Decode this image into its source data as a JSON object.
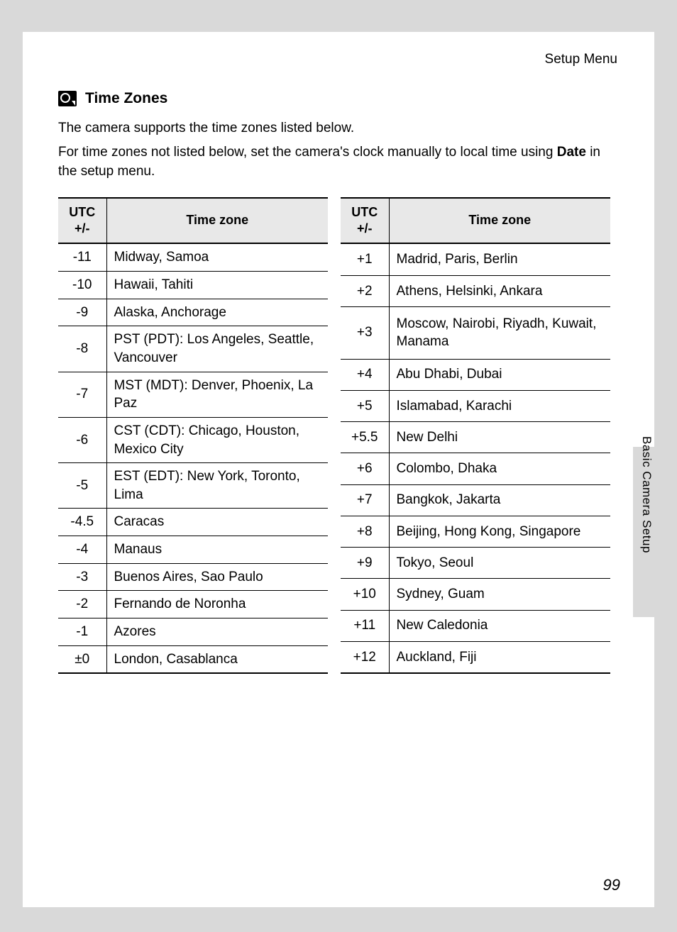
{
  "breadcrumb": "Setup Menu",
  "heading": "Time Zones",
  "intro": {
    "line1": "The camera supports the time zones listed below.",
    "line2a": "For time zones not listed below, set the camera's clock manually to local time using ",
    "line2_bold": "Date",
    "line2b": " in the setup menu."
  },
  "table_headers": {
    "utc": "UTC +/-",
    "zone": "Time zone"
  },
  "left_rows": [
    {
      "utc": "-11",
      "zone": "Midway, Samoa"
    },
    {
      "utc": "-10",
      "zone": "Hawaii, Tahiti"
    },
    {
      "utc": "-9",
      "zone": "Alaska, Anchorage"
    },
    {
      "utc": "-8",
      "zone": "PST (PDT): Los Angeles, Seattle, Vancouver"
    },
    {
      "utc": "-7",
      "zone": "MST (MDT): Denver, Phoenix, La Paz"
    },
    {
      "utc": "-6",
      "zone": "CST (CDT): Chicago, Houston, Mexico City"
    },
    {
      "utc": "-5",
      "zone": "EST (EDT): New York, Toronto, Lima"
    },
    {
      "utc": "-4.5",
      "zone": "Caracas"
    },
    {
      "utc": "-4",
      "zone": "Manaus"
    },
    {
      "utc": "-3",
      "zone": "Buenos Aires, Sao Paulo"
    },
    {
      "utc": "-2",
      "zone": "Fernando de Noronha"
    },
    {
      "utc": "-1",
      "zone": "Azores"
    },
    {
      "utc": "±0",
      "zone": "London, Casablanca"
    }
  ],
  "right_rows": [
    {
      "utc": "+1",
      "zone": "Madrid, Paris, Berlin"
    },
    {
      "utc": "+2",
      "zone": "Athens, Helsinki, Ankara"
    },
    {
      "utc": "+3",
      "zone": "Moscow, Nairobi, Riyadh, Kuwait, Manama"
    },
    {
      "utc": "+4",
      "zone": "Abu Dhabi, Dubai"
    },
    {
      "utc": "+5",
      "zone": "Islamabad, Karachi"
    },
    {
      "utc": "+5.5",
      "zone": "New Delhi"
    },
    {
      "utc": "+6",
      "zone": "Colombo, Dhaka"
    },
    {
      "utc": "+7",
      "zone": "Bangkok, Jakarta"
    },
    {
      "utc": "+8",
      "zone": "Beijing, Hong Kong, Singapore"
    },
    {
      "utc": "+9",
      "zone": "Tokyo, Seoul"
    },
    {
      "utc": "+10",
      "zone": "Sydney, Guam"
    },
    {
      "utc": "+11",
      "zone": "New Caledonia"
    },
    {
      "utc": "+12",
      "zone": "Auckland, Fiji"
    }
  ],
  "side_label": "Basic Camera Setup",
  "page_number": "99",
  "colors": {
    "page_bg": "#ffffff",
    "outer_bg": "#d9d9d9",
    "header_bg": "#e8e8e8",
    "border": "#000000",
    "text": "#000000"
  }
}
